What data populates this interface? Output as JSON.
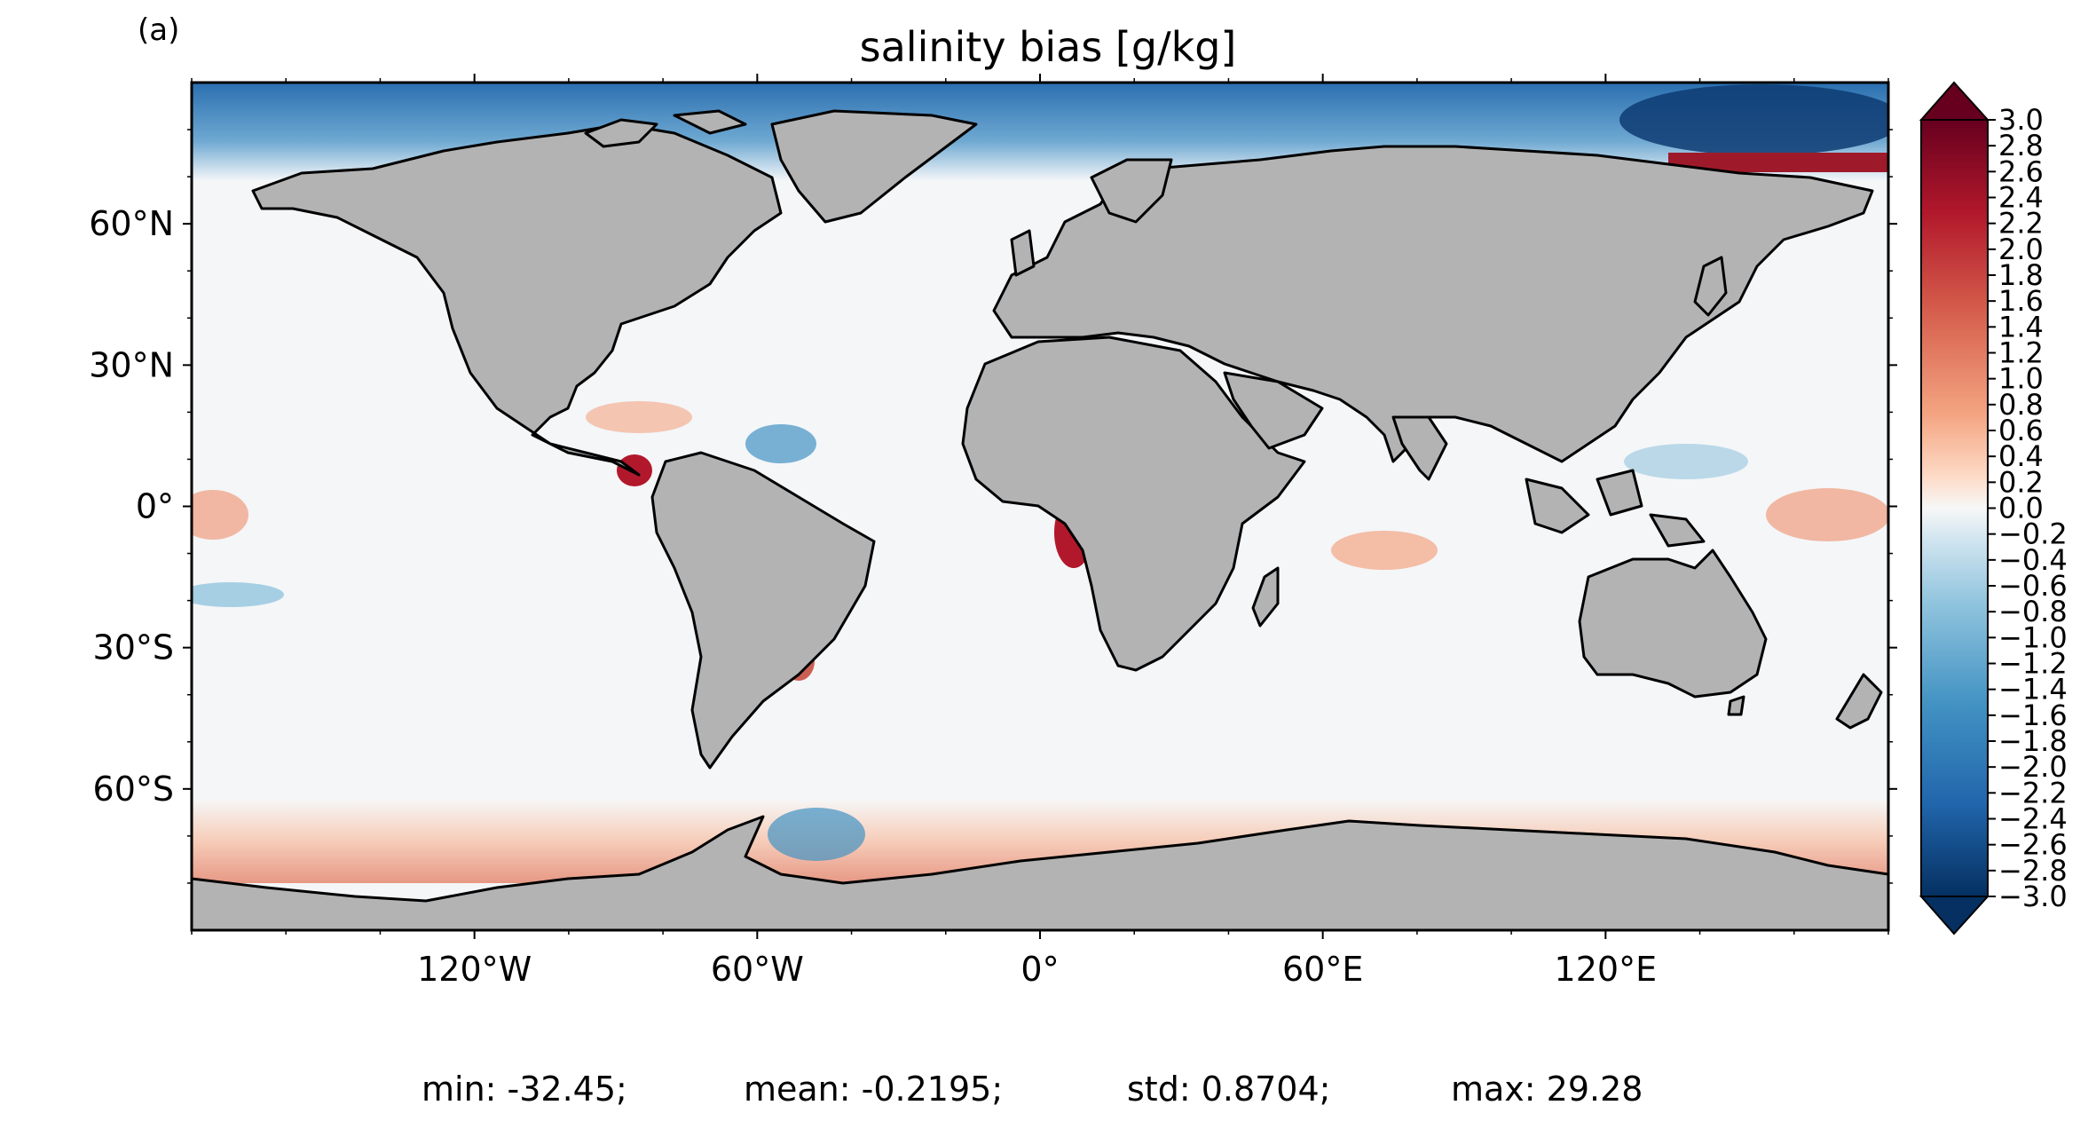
{
  "panel_label": "(a)",
  "title": "salinity bias [g/kg]",
  "map": {
    "projection": "PlateCarree",
    "lon_range": [
      -180,
      180
    ],
    "lat_range": [
      -90,
      90
    ],
    "land_color": "#b3b3b3",
    "coast_color": "#000000",
    "lat_ticks": [
      {
        "value": 60,
        "label": "60°N"
      },
      {
        "value": 30,
        "label": "30°N"
      },
      {
        "value": 0,
        "label": "0°"
      },
      {
        "value": -30,
        "label": "30°S"
      },
      {
        "value": -60,
        "label": "60°S"
      }
    ],
    "lon_ticks": [
      {
        "value": -120,
        "label": "120°W"
      },
      {
        "value": -60,
        "label": "60°W"
      },
      {
        "value": 0,
        "label": "0°"
      },
      {
        "value": 60,
        "label": "60°E"
      },
      {
        "value": 120,
        "label": "120°E"
      }
    ]
  },
  "colorbar": {
    "cmap": "RdBu_r",
    "vmin": -3.0,
    "vmax": 3.0,
    "extend": "both",
    "tick_labels": [
      "3.0",
      "2.8",
      "2.6",
      "2.4",
      "2.2",
      "2.0",
      "1.8",
      "1.6",
      "1.4",
      "1.2",
      "1.0",
      "0.8",
      "0.6",
      "0.4",
      "0.2",
      "0.0",
      "−0.2",
      "−0.4",
      "−0.6",
      "−0.8",
      "−1.0",
      "−1.2",
      "−1.4",
      "−1.6",
      "−1.8",
      "−2.0",
      "−2.2",
      "−2.4",
      "−2.6",
      "−2.8",
      "−3.0"
    ],
    "colors": {
      "max": "#67001f",
      "high": "#d6604d",
      "mid": "#f7f7f7",
      "low": "#4393c3",
      "min": "#053061"
    }
  },
  "stats": {
    "min": "min: -32.45;",
    "mean": "mean: -0.2195;",
    "std": "std: 0.8704;",
    "max": "max: 29.28"
  }
}
